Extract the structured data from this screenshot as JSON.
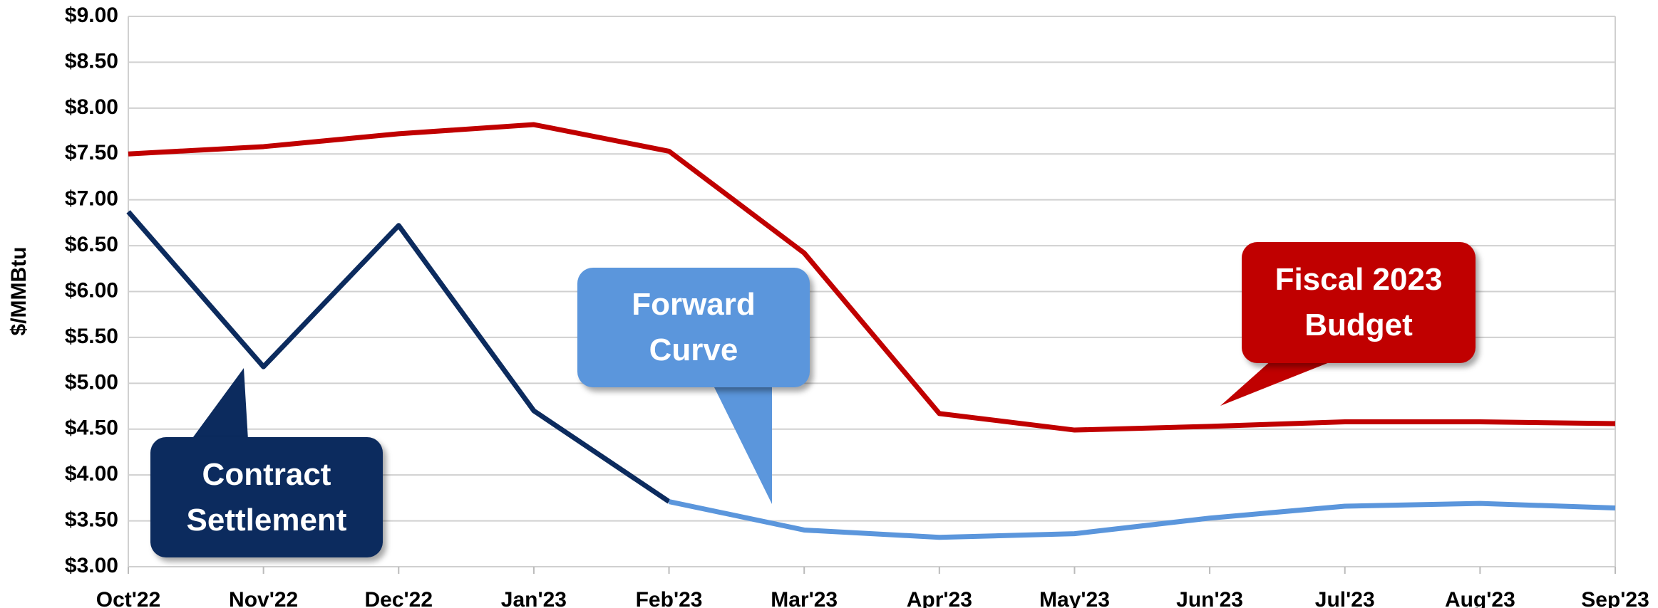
{
  "chart_data": {
    "type": "line",
    "y_label": "$/MMBtu",
    "categories": [
      "Oct'22",
      "Nov'22",
      "Dec'22",
      "Jan'23",
      "Feb'23",
      "Mar'23",
      "Apr'23",
      "May'23",
      "Jun'23",
      "Jul'23",
      "Aug'23",
      "Sep'23"
    ],
    "series": [
      {
        "name": "Fiscal 2023 Budget",
        "color": "#c00000",
        "values": [
          7.5,
          7.58,
          7.72,
          7.82,
          7.53,
          6.42,
          4.67,
          4.49,
          4.53,
          4.58,
          4.58,
          4.56
        ]
      },
      {
        "name": "Contract Settlement",
        "color": "#0c2b5e",
        "values": [
          6.87,
          5.18,
          6.72,
          4.7,
          3.71,
          null,
          null,
          null,
          null,
          null,
          null,
          null
        ]
      },
      {
        "name": "Forward Curve",
        "color": "#5b96dc",
        "values": [
          null,
          null,
          null,
          null,
          3.71,
          3.4,
          3.32,
          3.36,
          3.53,
          3.66,
          3.69,
          3.64
        ]
      }
    ],
    "ylim": [
      3,
      9
    ],
    "yticks": [
      {
        "value": 3,
        "label": "$3.00"
      },
      {
        "value": 3.5,
        "label": "$3.50"
      },
      {
        "value": 4,
        "label": "$4.00"
      },
      {
        "value": 4.5,
        "label": "$4.50"
      },
      {
        "value": 5,
        "label": "$5.00"
      },
      {
        "value": 5.5,
        "label": "$5.50"
      },
      {
        "value": 6,
        "label": "$6.00"
      },
      {
        "value": 6.5,
        "label": "$6.50"
      },
      {
        "value": 7,
        "label": "$7.00"
      },
      {
        "value": 7.5,
        "label": "$7.50"
      },
      {
        "value": 8,
        "label": "$8.00"
      },
      {
        "value": 8.5,
        "label": "$8.50"
      },
      {
        "value": 9,
        "label": "$9.00"
      }
    ],
    "grid": true
  }
}
